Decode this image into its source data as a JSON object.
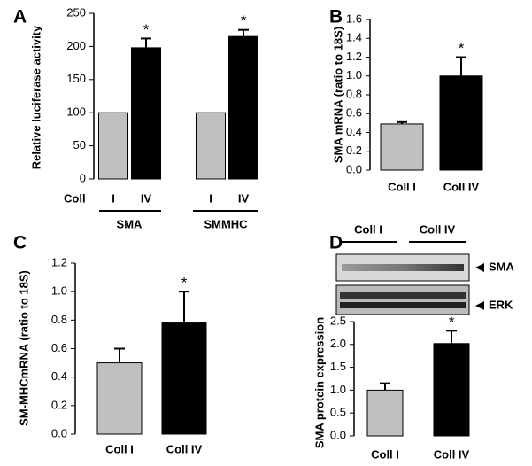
{
  "chart_data": [
    {
      "type": "bar",
      "label": "A",
      "ylabel": "Relative luciferase activity",
      "x_title": "Coll",
      "categories": [
        "I",
        "IV",
        "I",
        "IV"
      ],
      "groups": [
        "SMA",
        "SMMHC"
      ],
      "values": [
        100,
        198,
        100,
        215
      ],
      "errors": [
        0,
        14,
        0,
        10
      ],
      "significance": [
        null,
        "*",
        null,
        "*"
      ],
      "colors": [
        "#c0c0c0",
        "#000000",
        "#c0c0c0",
        "#000000"
      ],
      "ylim": [
        0,
        250
      ],
      "yticks": [
        0,
        50,
        100,
        150,
        200,
        250
      ]
    },
    {
      "type": "bar",
      "label": "B",
      "ylabel": "SMA mRNA (ratio to 18S)",
      "categories": [
        "Coll I",
        "Coll IV"
      ],
      "values": [
        0.49,
        1.0
      ],
      "errors": [
        0.02,
        0.2
      ],
      "significance": [
        null,
        "*"
      ],
      "colors": [
        "#c0c0c0",
        "#000000"
      ],
      "ylim": [
        0,
        1.6
      ],
      "yticks": [
        {
          "value": 0,
          "label": "0.0"
        },
        {
          "value": 0.2,
          "label": "0.2"
        },
        {
          "value": 0.4,
          "label": "0.4"
        },
        {
          "value": 0.6,
          "label": "0.6"
        },
        {
          "value": 0.8,
          "label": "0.8"
        },
        {
          "value": 1.0,
          "label": "1.0"
        },
        {
          "value": 1.2,
          "label": "1.2"
        },
        {
          "value": 1.4,
          "label": "1.4"
        },
        {
          "value": 1.6,
          "label": "1.6"
        }
      ]
    },
    {
      "type": "bar",
      "label": "C",
      "ylabel": "SM-MHCmRNA (ratio to 18S)",
      "categories": [
        "Coll I",
        "Coll IV"
      ],
      "values": [
        0.5,
        0.78
      ],
      "errors": [
        0.1,
        0.22
      ],
      "significance": [
        null,
        "*"
      ],
      "colors": [
        "#c0c0c0",
        "#000000"
      ],
      "ylim": [
        0,
        1.2
      ],
      "yticks": [
        {
          "value": 0,
          "label": "0.0"
        },
        {
          "value": 0.2,
          "label": "0.2"
        },
        {
          "value": 0.4,
          "label": "0.4"
        },
        {
          "value": 0.6,
          "label": "0.6"
        },
        {
          "value": 0.8,
          "label": "0.8"
        },
        {
          "value": 1.0,
          "label": "1.0"
        },
        {
          "value": 1.2,
          "label": "1.2"
        }
      ]
    },
    {
      "type": "bar",
      "label": "D",
      "ylabel": "SMA protein expression",
      "blot": {
        "groups": [
          "Coll I",
          "Coll IV"
        ],
        "rows": [
          "SMA",
          "ERK"
        ]
      },
      "categories": [
        "Coll I",
        "Coll IV"
      ],
      "values": [
        1.0,
        2.02
      ],
      "errors": [
        0.15,
        0.28
      ],
      "significance": [
        null,
        "*"
      ],
      "colors": [
        "#c0c0c0",
        "#000000"
      ],
      "ylim": [
        0,
        2.5
      ],
      "yticks": [
        {
          "value": 0,
          "label": "0.0"
        },
        {
          "value": 0.5,
          "label": "0.5"
        },
        {
          "value": 1.0,
          "label": "1.0"
        },
        {
          "value": 1.5,
          "label": "1.5"
        },
        {
          "value": 2.0,
          "label": "2.0"
        },
        {
          "value": 2.5,
          "label": "2.5"
        }
      ]
    }
  ]
}
